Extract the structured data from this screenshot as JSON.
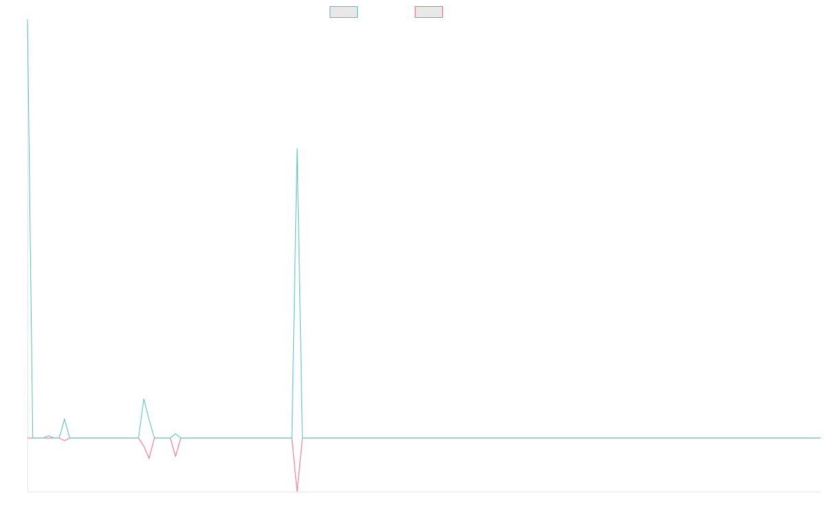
{
  "chart_data": {
    "type": "line",
    "title": "",
    "xlabel": "",
    "ylabel": "",
    "grid": false,
    "legend_position": "top-center",
    "x": [
      0,
      1,
      2,
      3,
      4,
      5,
      6,
      7,
      8,
      9,
      10,
      11,
      12,
      13,
      14,
      15,
      16,
      17,
      18,
      19,
      20,
      21,
      22,
      23,
      24,
      25,
      26,
      27,
      28,
      29,
      30,
      31,
      32,
      33,
      34,
      35,
      36,
      37,
      38,
      39,
      40,
      41,
      42,
      43,
      44,
      45,
      46,
      47,
      48,
      49,
      50,
      51,
      52,
      53,
      54,
      55,
      56,
      57,
      58,
      59,
      60,
      61,
      62,
      63,
      64,
      65,
      66,
      67,
      68,
      69,
      70,
      71,
      72,
      73,
      74,
      75,
      76,
      77,
      78,
      79,
      80,
      81,
      82,
      83,
      84,
      85,
      86,
      87,
      88,
      89,
      90,
      91,
      92,
      93,
      94,
      95,
      96,
      97,
      98,
      99,
      100,
      101,
      102,
      103,
      104,
      105,
      106,
      107,
      108,
      109,
      110,
      111,
      112,
      113,
      114,
      115,
      116,
      117,
      118,
      119,
      120,
      121,
      122,
      123,
      124,
      125,
      126,
      127,
      128,
      129,
      130,
      131,
      132,
      133,
      134,
      135,
      136,
      137,
      138,
      139,
      140,
      141,
      142,
      143,
      144,
      145,
      146,
      147,
      148,
      149,
      150
    ],
    "xlim": [
      0,
      150
    ],
    "ylim": [
      -10,
      77
    ],
    "series": [
      {
        "color": "#4bc0c0",
        "values": [
          78,
          0,
          0,
          0,
          0.4,
          0,
          0,
          3.5,
          0,
          0,
          0,
          0,
          0,
          0,
          0,
          0,
          0,
          0,
          0,
          0,
          0,
          0,
          7.3,
          3.4,
          0,
          0,
          0,
          0,
          0.8,
          0,
          0,
          0,
          0,
          0,
          0,
          0,
          0,
          0,
          0,
          0,
          0,
          0,
          0,
          0,
          0,
          0,
          0,
          0,
          0,
          0,
          0,
          54,
          0,
          0,
          0,
          0,
          0,
          0,
          0,
          0,
          0,
          0,
          0,
          0,
          0,
          0,
          0,
          0,
          0,
          0,
          0,
          0,
          0,
          0,
          0,
          0,
          0,
          0,
          0,
          0,
          0,
          0,
          0,
          0,
          0,
          0,
          0,
          0,
          0,
          0,
          0,
          0,
          0,
          0,
          0,
          0,
          0,
          0,
          0,
          0,
          0,
          0,
          0,
          0,
          0,
          0,
          0,
          0,
          0,
          0,
          0,
          0,
          0,
          0,
          0,
          0,
          0,
          0,
          0,
          0,
          0,
          0,
          0,
          0,
          0,
          0,
          0,
          0,
          0,
          0,
          0,
          0,
          0,
          0,
          0,
          0,
          0,
          0,
          0,
          0,
          0,
          0,
          0,
          0,
          0,
          0,
          0,
          0,
          0,
          0,
          0
        ]
      },
      {
        "color": "#ff6384",
        "values": [
          0,
          0,
          0,
          0,
          0,
          0,
          0,
          -0.5,
          0,
          0,
          0,
          0,
          0,
          0,
          0,
          0,
          0,
          0,
          0,
          0,
          0,
          0,
          -1.5,
          -3.8,
          0,
          0,
          0,
          0,
          -3.4,
          0,
          0,
          0,
          0,
          0,
          0,
          0,
          0,
          0,
          0,
          0,
          0,
          0,
          0,
          0,
          0,
          0,
          0,
          0,
          0,
          0,
          0,
          -10,
          0,
          0,
          0,
          0,
          0,
          0,
          0,
          0,
          0,
          0,
          0,
          0,
          0,
          0,
          0,
          0,
          0,
          0,
          0,
          0,
          0,
          0,
          0,
          0,
          0,
          0,
          0,
          0,
          0,
          0,
          0,
          0,
          0,
          0,
          0,
          0,
          0,
          0,
          0,
          0,
          0,
          0,
          0,
          0,
          0,
          0,
          0,
          0,
          0,
          0,
          0,
          0,
          0,
          0,
          0,
          0,
          0,
          0,
          0,
          0,
          0,
          0,
          0,
          0,
          0,
          0,
          0,
          0,
          0,
          0,
          0,
          0,
          0,
          0,
          0,
          0,
          0,
          0,
          0,
          0,
          0,
          0,
          0,
          0,
          0,
          0,
          0,
          0,
          0,
          0,
          0,
          0,
          0,
          0,
          0,
          0,
          0,
          0,
          0
        ]
      }
    ]
  }
}
